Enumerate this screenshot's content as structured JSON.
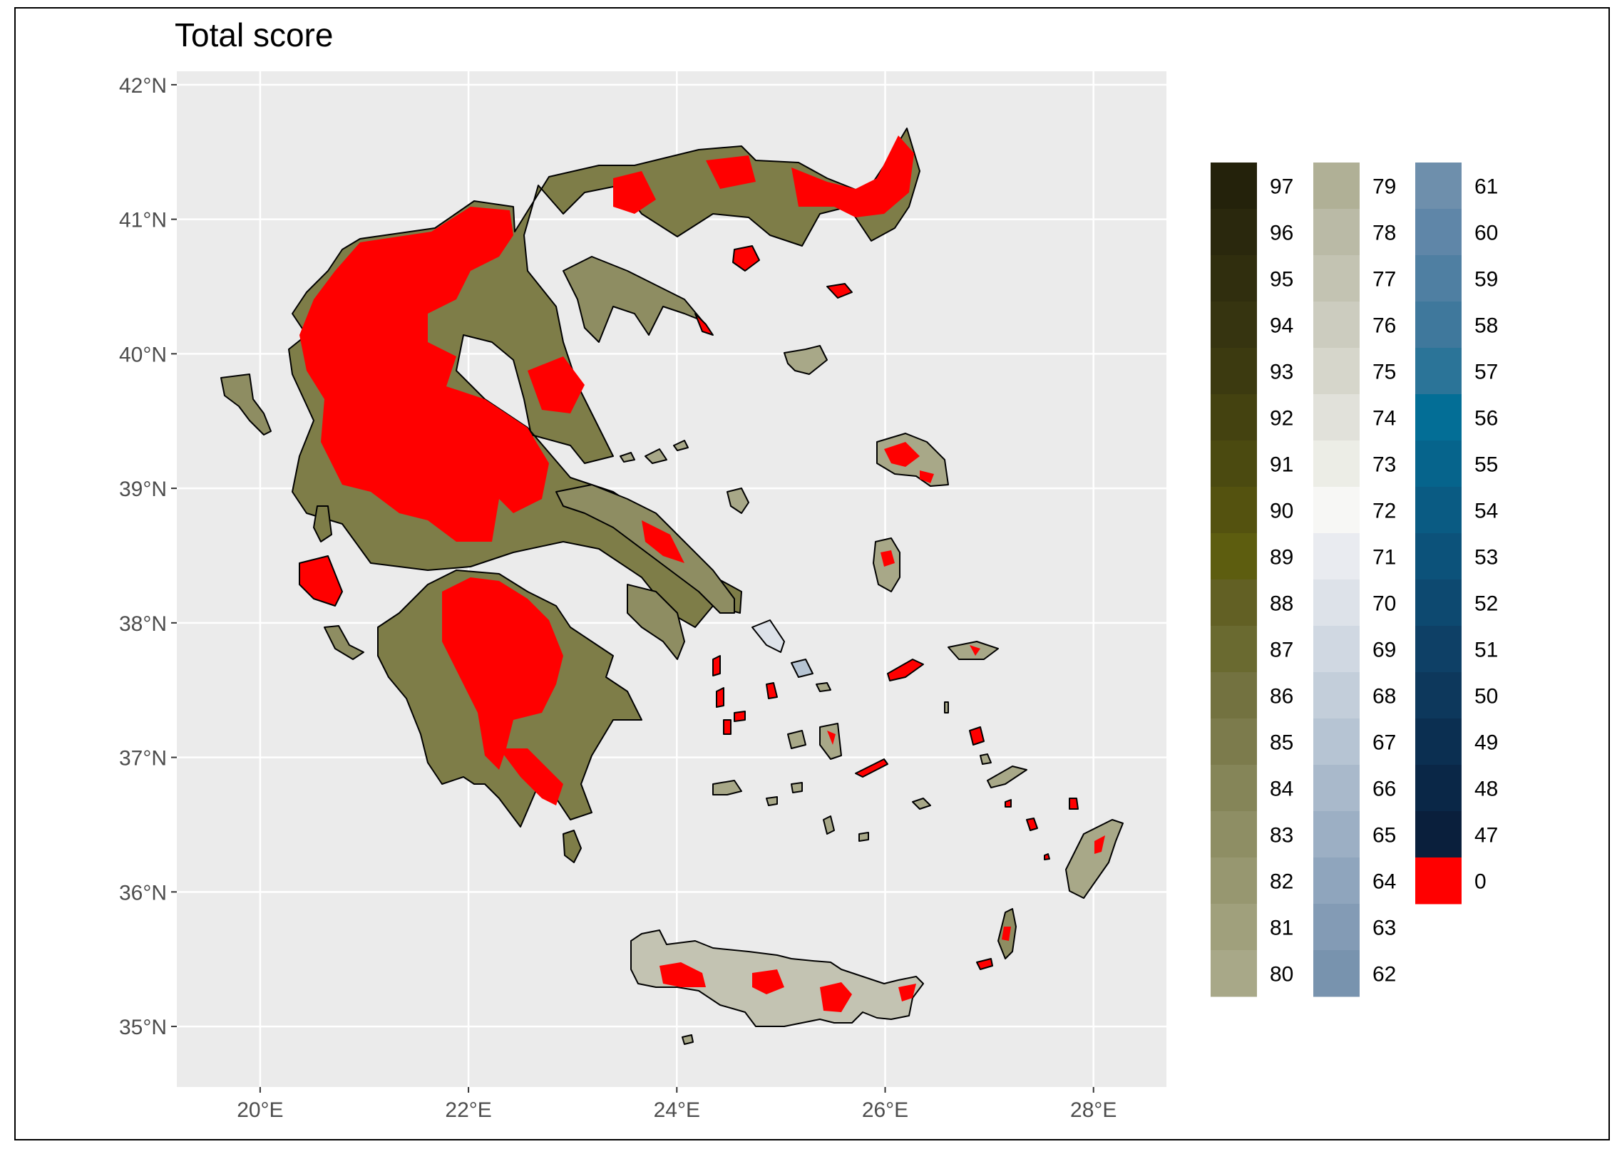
{
  "title": "Total score",
  "axes": {
    "lat_ticks": [
      "42°N",
      "41°N",
      "40°N",
      "39°N",
      "38°N",
      "37°N",
      "36°N",
      "35°N"
    ],
    "lon_ticks": [
      "20°E",
      "22°E",
      "24°E",
      "26°E",
      "28°E"
    ],
    "lat_values": [
      42,
      41,
      40,
      39,
      38,
      37,
      36,
      35
    ],
    "lon_values": [
      20,
      22,
      24,
      26,
      28
    ],
    "lat_range": [
      34.55,
      42.1
    ],
    "lon_range": [
      19.2,
      28.7
    ]
  },
  "colors": {
    "panel_bg": "#ebebeb",
    "grid": "#ffffff",
    "land_dark": "#5d5d22",
    "land_light": "#b8b8a0",
    "zero_red": "#ff0000"
  },
  "legend": {
    "columns": [
      {
        "entries": [
          {
            "label": "97",
            "color": "#24220b"
          },
          {
            "label": "96",
            "color": "#2a280d"
          },
          {
            "label": "95",
            "color": "#302e0e"
          },
          {
            "label": "94",
            "color": "#363410"
          },
          {
            "label": "93",
            "color": "#3c3a10"
          },
          {
            "label": "92",
            "color": "#444210"
          },
          {
            "label": "91",
            "color": "#4b4a10"
          },
          {
            "label": "90",
            "color": "#54520f"
          },
          {
            "label": "89",
            "color": "#5d5d0f"
          },
          {
            "label": "88",
            "color": "#626024"
          },
          {
            "label": "87",
            "color": "#6a6a30"
          },
          {
            "label": "86",
            "color": "#737240"
          },
          {
            "label": "85",
            "color": "#7c7b4c"
          },
          {
            "label": "84",
            "color": "#858558"
          },
          {
            "label": "83",
            "color": "#8e8e64"
          },
          {
            "label": "82",
            "color": "#979770"
          },
          {
            "label": "81",
            "color": "#a0a07c"
          },
          {
            "label": "80",
            "color": "#a8a888"
          }
        ]
      },
      {
        "entries": [
          {
            "label": "79",
            "color": "#b0b096"
          },
          {
            "label": "78",
            "color": "#babaa6"
          },
          {
            "label": "77",
            "color": "#c3c3b2"
          },
          {
            "label": "76",
            "color": "#ccccbf"
          },
          {
            "label": "75",
            "color": "#d6d6cb"
          },
          {
            "label": "74",
            "color": "#e1e1da"
          },
          {
            "label": "73",
            "color": "#ecede6"
          },
          {
            "label": "72",
            "color": "#f7f7f5"
          },
          {
            "label": "71",
            "color": "#e9ebf0"
          },
          {
            "label": "70",
            "color": "#dde2e9"
          },
          {
            "label": "69",
            "color": "#d0d8e2"
          },
          {
            "label": "68",
            "color": "#c3ceda"
          },
          {
            "label": "67",
            "color": "#b6c4d3"
          },
          {
            "label": "66",
            "color": "#a9b9cb"
          },
          {
            "label": "65",
            "color": "#9cafc4"
          },
          {
            "label": "64",
            "color": "#8fa5bd"
          },
          {
            "label": "63",
            "color": "#839bb5"
          },
          {
            "label": "62",
            "color": "#7893ae"
          }
        ]
      },
      {
        "entries": [
          {
            "label": "61",
            "color": "#6e8fac"
          },
          {
            "label": "60",
            "color": "#5f86a8"
          },
          {
            "label": "59",
            "color": "#4f7fa2"
          },
          {
            "label": "58",
            "color": "#3f789c"
          },
          {
            "label": "57",
            "color": "#2b7498"
          },
          {
            "label": "56",
            "color": "#036e96"
          },
          {
            "label": "55",
            "color": "#06648c"
          },
          {
            "label": "54",
            "color": "#0a5b83"
          },
          {
            "label": "53",
            "color": "#0c527a"
          },
          {
            "label": "52",
            "color": "#0d4970"
          },
          {
            "label": "51",
            "color": "#0e4066"
          },
          {
            "label": "50",
            "color": "#0d385c"
          },
          {
            "label": "49",
            "color": "#0b2f51"
          },
          {
            "label": "48",
            "color": "#0a2747"
          },
          {
            "label": "47",
            "color": "#0a1f3c"
          },
          {
            "label": "0",
            "color": "#ff0000"
          }
        ]
      }
    ]
  }
}
